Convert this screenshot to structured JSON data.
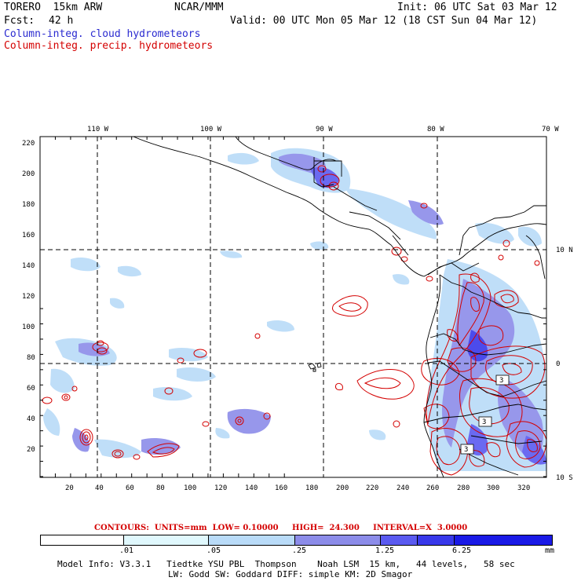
{
  "header": {
    "model": "TORERO  15km ARW",
    "org": "NCAR/MMM",
    "init": "Init: 06 UTC Sat 03 Mar 12",
    "fcst_label": "Fcst:",
    "fcst_value": "42 h",
    "valid": "Valid: 00 UTC Mon 05 Mar 12 (18 CST Sun 04 Mar 12)"
  },
  "legend": {
    "cloud": "Column-integ. cloud hydrometeors",
    "precip": "Column-integ. precip. hydrometeors",
    "cloud_color": "#2a2ad0",
    "precip_color": "#d40000"
  },
  "map": {
    "lon_labels": [
      "110 W",
      "100 W",
      "90 W",
      "80 W",
      "70 W"
    ],
    "lat_labels": [
      "10 N",
      "0",
      "10 S"
    ],
    "y_ticks": [
      "220",
      "200",
      "180",
      "160",
      "140",
      "120",
      "100",
      "80",
      "60",
      "40",
      "20"
    ],
    "x_ticks": [
      "20",
      "40",
      "60",
      "80",
      "100",
      "120",
      "140",
      "160",
      "180",
      "200",
      "220",
      "240",
      "260",
      "280",
      "300",
      "320"
    ],
    "contour_labels": [
      "3",
      "3",
      "3"
    ]
  },
  "contours_info": "CONTOURS:  UNITS=mm  LOW= 0.10000     HIGH=  24.300     INTERVAL=X  3.0000",
  "colorbar": {
    "labels": [
      ".01",
      ".05",
      ".25",
      "1.25",
      "6.25"
    ],
    "unit": "mm",
    "colors": [
      "#ffffff",
      "#e0f8fd",
      "#b9dbf8",
      "#8c8ce9",
      "#5a5af0",
      "#3838ea",
      "#1a1ae6"
    ]
  },
  "footer": {
    "line1": "Model Info: V3.3.1   Tiedtke YSU PBL  Thompson    Noah LSM  15 km,   44 levels,   58 sec",
    "line2": "LW: Godd SW: Goddard DIFF: simple KM: 2D Smagor"
  }
}
